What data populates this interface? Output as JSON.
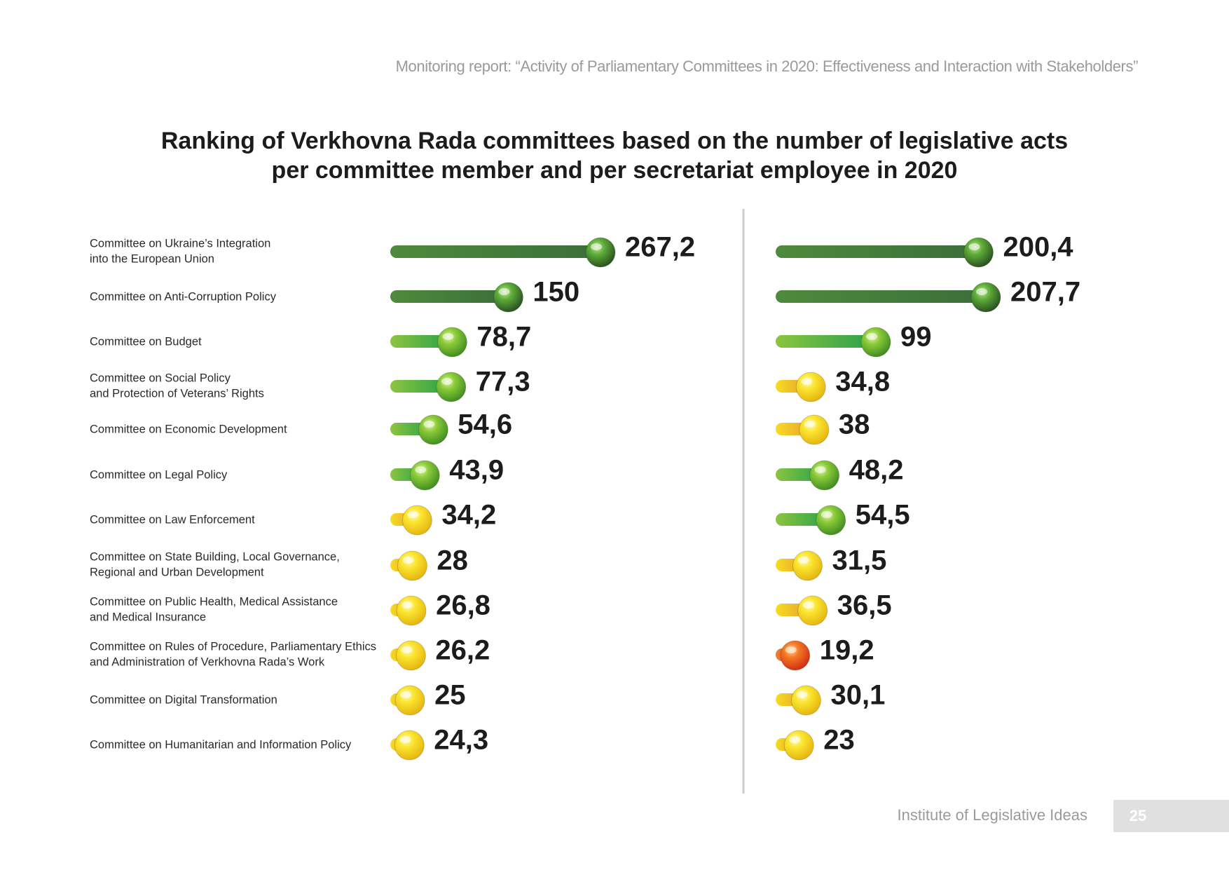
{
  "header": {
    "report_title": "Monitoring report: “Activity of Parliamentary Committees in 2020: Effectiveness and Interaction with Stakeholders”"
  },
  "footer": {
    "organization": "Institute of Legislative Ideas",
    "page_number": "25"
  },
  "colors": {
    "dark_green": "#3b6e3a",
    "green": "#5fb246",
    "yellow_orange": "#f2c21a",
    "red": "#e04d1f",
    "value_text": "#1c1c1c",
    "divider": "#cccccc"
  },
  "chart_data": {
    "type": "bar",
    "title": "Ranking of Verkhovna Rada committees based on the number of legislative acts per committee member and per secretariat employee in 2020",
    "title_lines": [
      "Ranking of Verkhovna Rada committees based on the number of legislative acts",
      "per committee member and per secretariat employee in 2020"
    ],
    "orientation": "horizontal",
    "categories": [
      [
        "Committee on Ukraine’s Integration",
        "into the European Union"
      ],
      [
        "Committee on Anti-Corruption Policy"
      ],
      [
        "Committee on Budget"
      ],
      [
        "Committee on Social Policy",
        "and Protection of Veterans’ Rights"
      ],
      [
        "Committee on Economic Development"
      ],
      [
        "Committee on Legal Policy"
      ],
      [
        "Committee on Law Enforcement"
      ],
      [
        "Committee on State Building, Local Governance,",
        "Regional and Urban Development"
      ],
      [
        "Committee on Public Health, Medical Assistance",
        "and Medical Insurance"
      ],
      [
        "Committee on Rules of Procedure, Parliamentary Ethics",
        "and Administration of Verkhovna Rada’s Work"
      ],
      [
        "Committee on Digital Transformation"
      ],
      [
        "Committee on Humanitarian and Information Policy"
      ]
    ],
    "series": [
      {
        "values": [
          267.2,
          150,
          78.7,
          77.3,
          54.6,
          43.9,
          34.2,
          28,
          26.8,
          26.2,
          25,
          24.3
        ],
        "labels": [
          "267,2",
          "150",
          "78,7",
          "77,3",
          "54,6",
          "43,9",
          "34,2",
          "28",
          "26,8",
          "26,2",
          "25",
          "24,3"
        ],
        "colors": [
          "dark_green",
          "dark_green",
          "green",
          "green",
          "green",
          "green",
          "yellow",
          "yellow",
          "yellow",
          "yellow",
          "yellow",
          "yellow"
        ]
      },
      {
        "values": [
          200.4,
          207.7,
          99,
          34.8,
          38,
          48.2,
          54.5,
          31.5,
          36.5,
          19.2,
          30.1,
          23
        ],
        "labels": [
          "200,4",
          "207,7",
          "99",
          "34,8",
          "38",
          "48,2",
          "54,5",
          "31,5",
          "36,5",
          "19,2",
          "30,1",
          "23"
        ],
        "colors": [
          "dark_green",
          "dark_green",
          "green",
          "yellow",
          "yellow",
          "green",
          "green",
          "yellow",
          "yellow",
          "red",
          "yellow",
          "yellow"
        ]
      }
    ]
  }
}
